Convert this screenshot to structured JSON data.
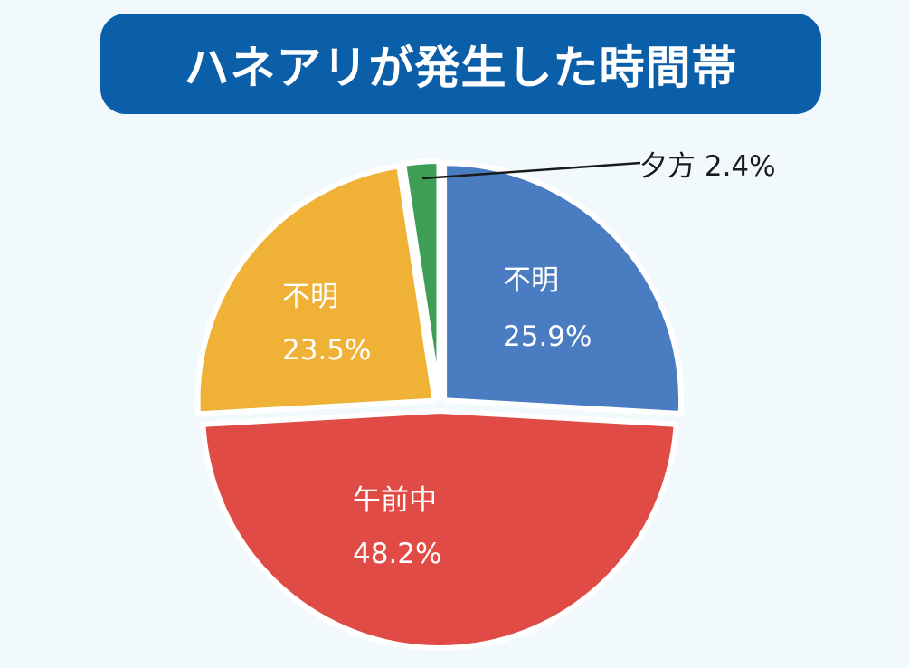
{
  "chart_data": {
    "type": "pie",
    "title": "ハネアリが発生した時間帯",
    "slices": [
      {
        "label": "不明",
        "value": 25.9,
        "value_text": "25.9%",
        "color": "#4a7cc1"
      },
      {
        "label": "午前中",
        "value": 48.2,
        "value_text": "48.2%",
        "color": "#e04b46"
      },
      {
        "label": "不明",
        "value": 23.5,
        "value_text": "23.5%",
        "color": "#efb136"
      },
      {
        "label": "夕方",
        "value": 2.4,
        "value_text": "2.4%",
        "color": "#3e9e55"
      }
    ],
    "start": "12 o'clock",
    "direction": "clockwise"
  }
}
